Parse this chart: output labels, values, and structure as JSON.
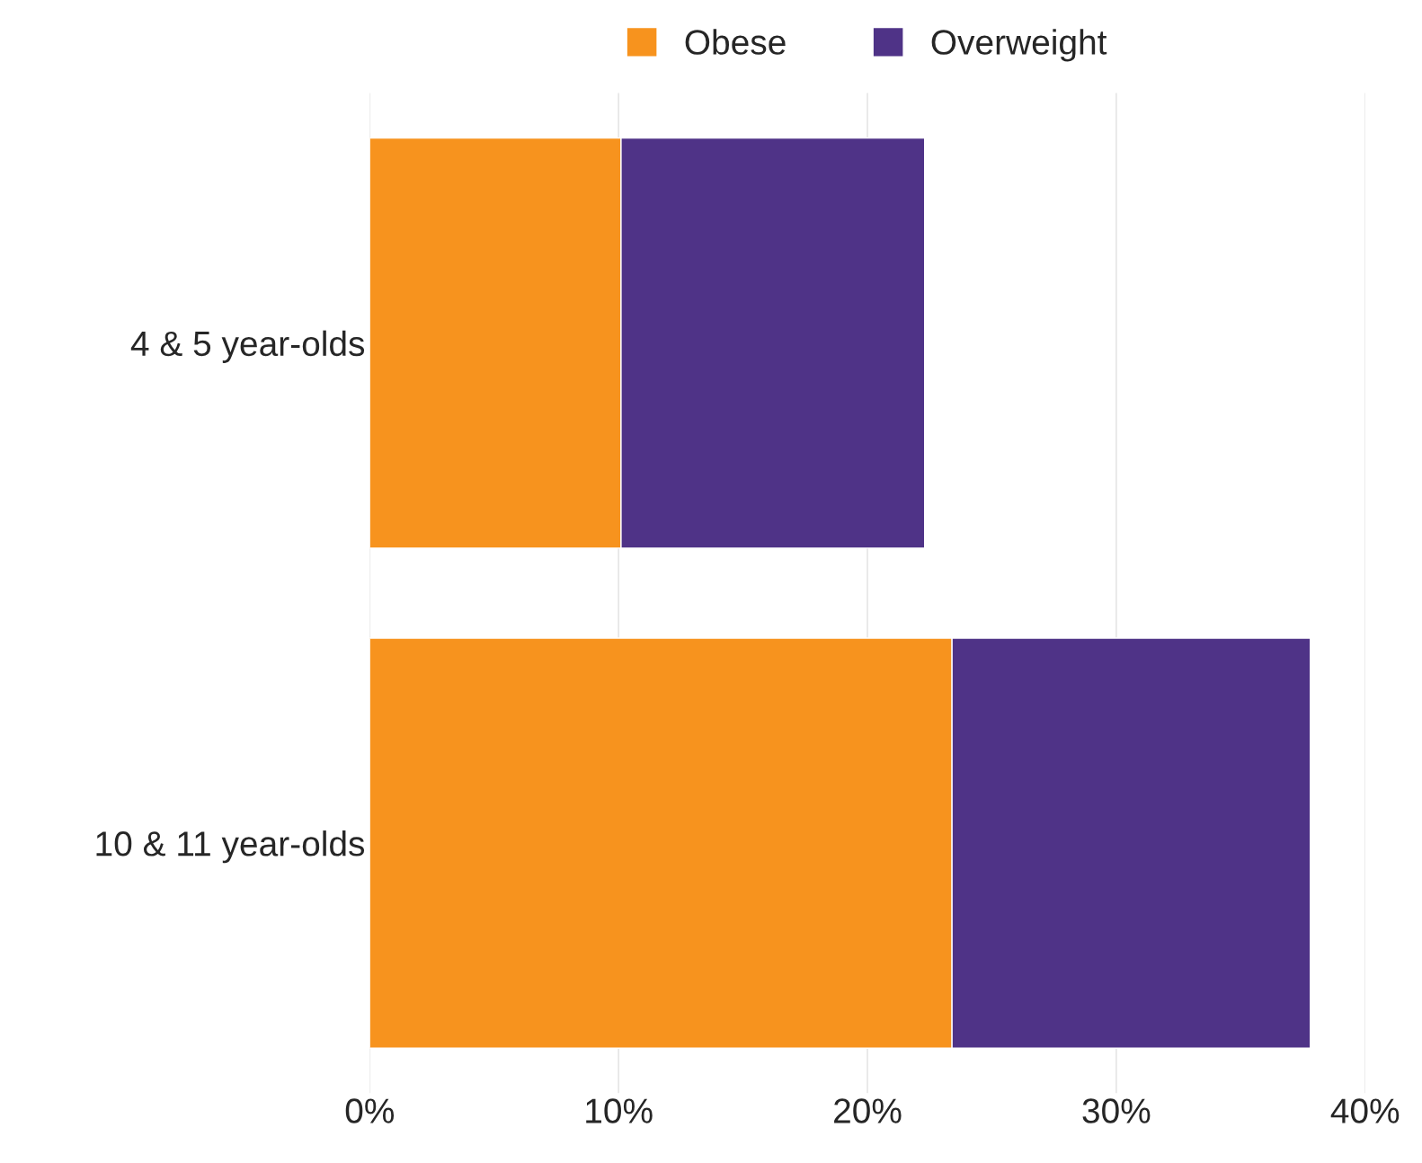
{
  "chart_data": {
    "type": "bar",
    "orientation": "horizontal",
    "stacked": true,
    "categories": [
      "4 & 5 year-olds",
      "10 & 11 year-olds"
    ],
    "series": [
      {
        "name": "Obese",
        "color": "#f7931e",
        "values": [
          10.1,
          23.4
        ]
      },
      {
        "name": "Overweight",
        "color": "#4f3387",
        "values": [
          12.2,
          14.4
        ]
      }
    ],
    "xlim": [
      0,
      40
    ],
    "xticks": [
      {
        "value": 0,
        "label": "0%"
      },
      {
        "value": 10,
        "label": "10%"
      },
      {
        "value": 20,
        "label": "20%"
      },
      {
        "value": 30,
        "label": "30%"
      },
      {
        "value": 40,
        "label": "40%"
      }
    ],
    "grid": "x",
    "legend": "top"
  }
}
